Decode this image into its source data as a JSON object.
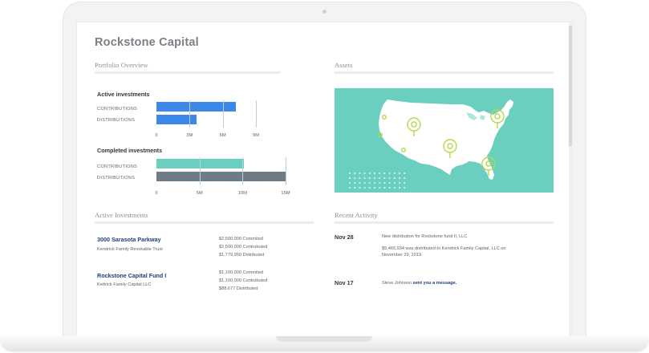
{
  "company": "Rockstone Capital",
  "portfolio": {
    "title": "Portfolio Overview",
    "active": {
      "heading": "Active investments",
      "rows": [
        {
          "label": "CONTRIBUTIONS",
          "value": 7.2,
          "color": "#3b88e8"
        },
        {
          "label": "DISTRIBUTIONS",
          "value": 3.6,
          "color": "#3b88e8"
        }
      ],
      "axis_max": 9,
      "ticks": [
        "0",
        "3M",
        "6M",
        "9M"
      ],
      "tick_values": [
        0,
        3,
        6,
        9
      ]
    },
    "completed": {
      "heading": "Completed investments",
      "rows": [
        {
          "label": "CONTRIBUTIONS",
          "value": 10.2,
          "color": "#6acfbf"
        },
        {
          "label": "DISTRIBUTIONS",
          "value": 15,
          "color": "#6d7c86"
        }
      ],
      "axis_max": 15,
      "ticks": [
        "0",
        "5M",
        "10M",
        "15M"
      ],
      "tick_values": [
        0,
        5,
        10,
        15
      ]
    }
  },
  "assets": {
    "title": "Assets",
    "map_color": "#6acfbf",
    "pin_color": "#b5d84a"
  },
  "active_investments": {
    "title": "Active Investments",
    "items": [
      {
        "name": "3000 Sarasota Parkway",
        "owner": "Kendrick Family Revokable Trust",
        "lines": [
          "$2,500,000 Commited",
          "$2,500,000 Contrubuted",
          "$1,779,950 Distributed"
        ]
      },
      {
        "name": "Rockstone Capital Fund I",
        "owner": "Kettrick Family Capital LLC",
        "lines": [
          "$1,100,000 Commited",
          "$1,100,000 Contrubuted",
          "$88,677 Distributed"
        ]
      }
    ]
  },
  "recent_activity": {
    "title": "Recent Activity",
    "items": [
      {
        "date": "Nov 28",
        "text1": "New distribution for Rockstone fund II, LLC",
        "text2a": "$5,465,934 was distributed to Kendrick Family Capital, LLC on",
        "text2b": "November 29, 2019."
      },
      {
        "date": "Nov 17",
        "text_prefix": "Steve Johnson",
        "text_link": "sent you a message."
      }
    ]
  }
}
